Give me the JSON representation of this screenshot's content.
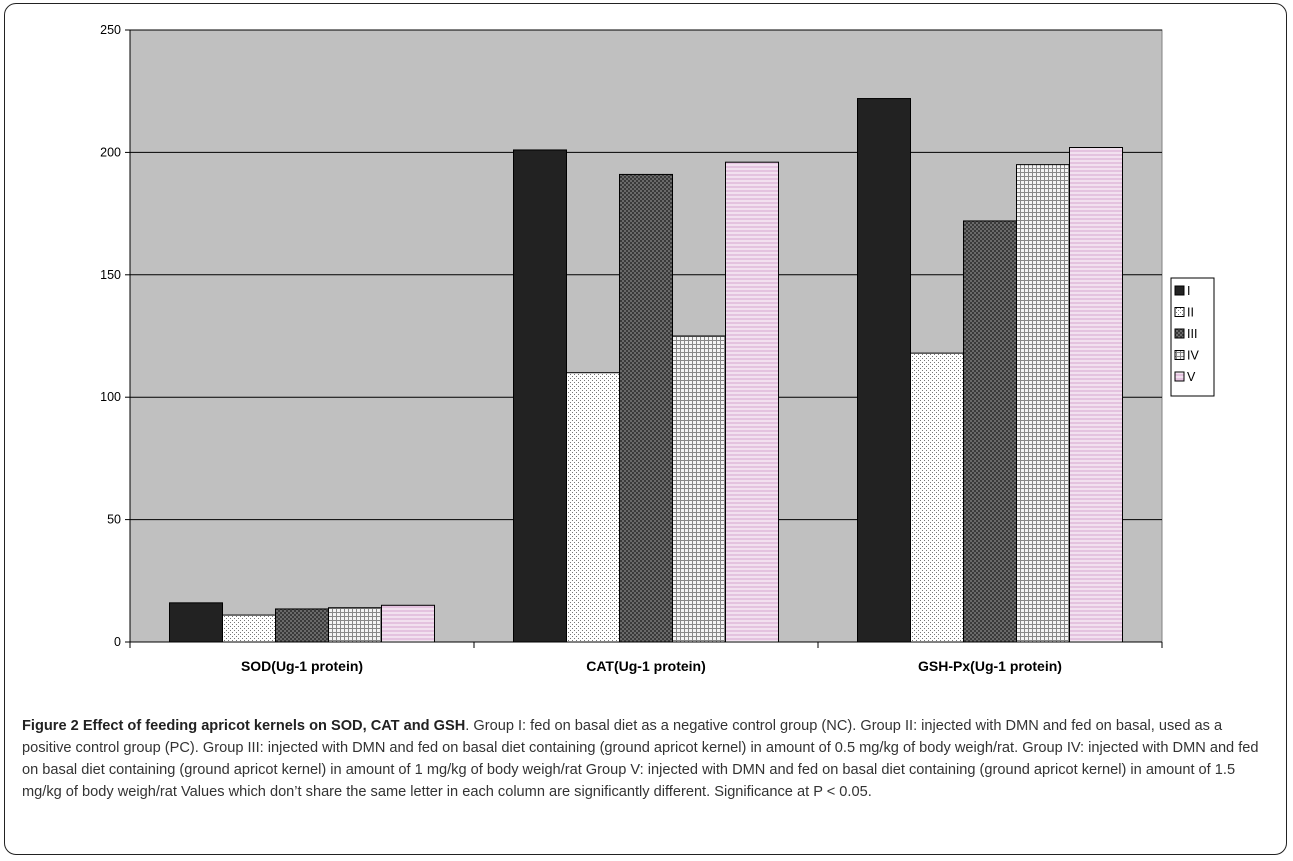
{
  "chart_data": {
    "type": "bar",
    "categories": [
      "SOD(Ug-1 protein)",
      "CAT(Ug-1 protein)",
      "GSH-Px(Ug-1 protein)"
    ],
    "series": [
      {
        "name": "I",
        "values": [
          16,
          201,
          222
        ],
        "color": "#222222",
        "pattern": "solid"
      },
      {
        "name": "II",
        "values": [
          11,
          110,
          118
        ],
        "color": "#ffffff",
        "pattern": "dots"
      },
      {
        "name": "III",
        "values": [
          13.5,
          191,
          172
        ],
        "color": "#555555",
        "pattern": "crosshatch"
      },
      {
        "name": "IV",
        "values": [
          14,
          125,
          195
        ],
        "color": "#e8e8e8",
        "pattern": "grid"
      },
      {
        "name": "V",
        "values": [
          15,
          196,
          202
        ],
        "color": "#e6c8e2",
        "pattern": "hlines"
      }
    ],
    "y_ticks": [
      "0",
      "50",
      "100",
      "150",
      "200",
      "250"
    ],
    "ylim": [
      0,
      250
    ],
    "grid": true,
    "plot_background": "#c0c0c0",
    "legend_position": "right"
  },
  "caption": {
    "title": "Figure 2 Effect of feeding apricot kernels on SOD, CAT and GSH",
    "text": ". Group I: fed on basal diet as a negative control group (NC). Group II: injected with DMN and fed on basal, used as a positive control group (PC). Group III: injected with DMN and fed on basal diet containing (ground apricot kernel) in amount of 0.5 mg/kg of body weigh/rat. Group IV: injected with DMN and fed on basal diet containing (ground apricot kernel) in amount of 1 mg/kg of body weigh/rat Group V: injected with DMN and fed on basal diet containing (ground apricot kernel) in amount of 1.5 mg/kg of body weigh/rat Values which don’t share the same letter in each column are significantly different. Significance at P < 0.05."
  }
}
